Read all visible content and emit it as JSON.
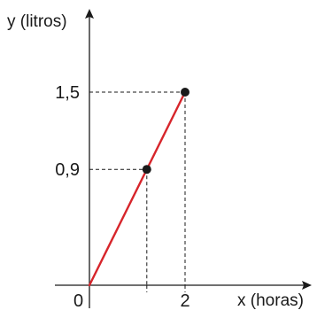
{
  "chart_data": {
    "type": "line",
    "xlabel": "x (horas)",
    "ylabel": "y (litros)",
    "origin_label": "0",
    "x_ticks": [
      {
        "value": 2,
        "label": "2"
      }
    ],
    "y_ticks": [
      {
        "value": 0.9,
        "label": "0,9"
      },
      {
        "value": 1.5,
        "label": "1,5"
      }
    ],
    "series": [
      {
        "x": [
          0,
          2
        ],
        "y": [
          0,
          1.5
        ]
      }
    ],
    "points": [
      {
        "x": 1.2,
        "y": 0.9
      },
      {
        "x": 2,
        "y": 1.5
      }
    ],
    "guide_lines": true,
    "line_color": "#d7252b",
    "point_color": "#1a1a1a",
    "axis_color": "#1a1a1a",
    "guide_color": "#1a1a1a"
  }
}
